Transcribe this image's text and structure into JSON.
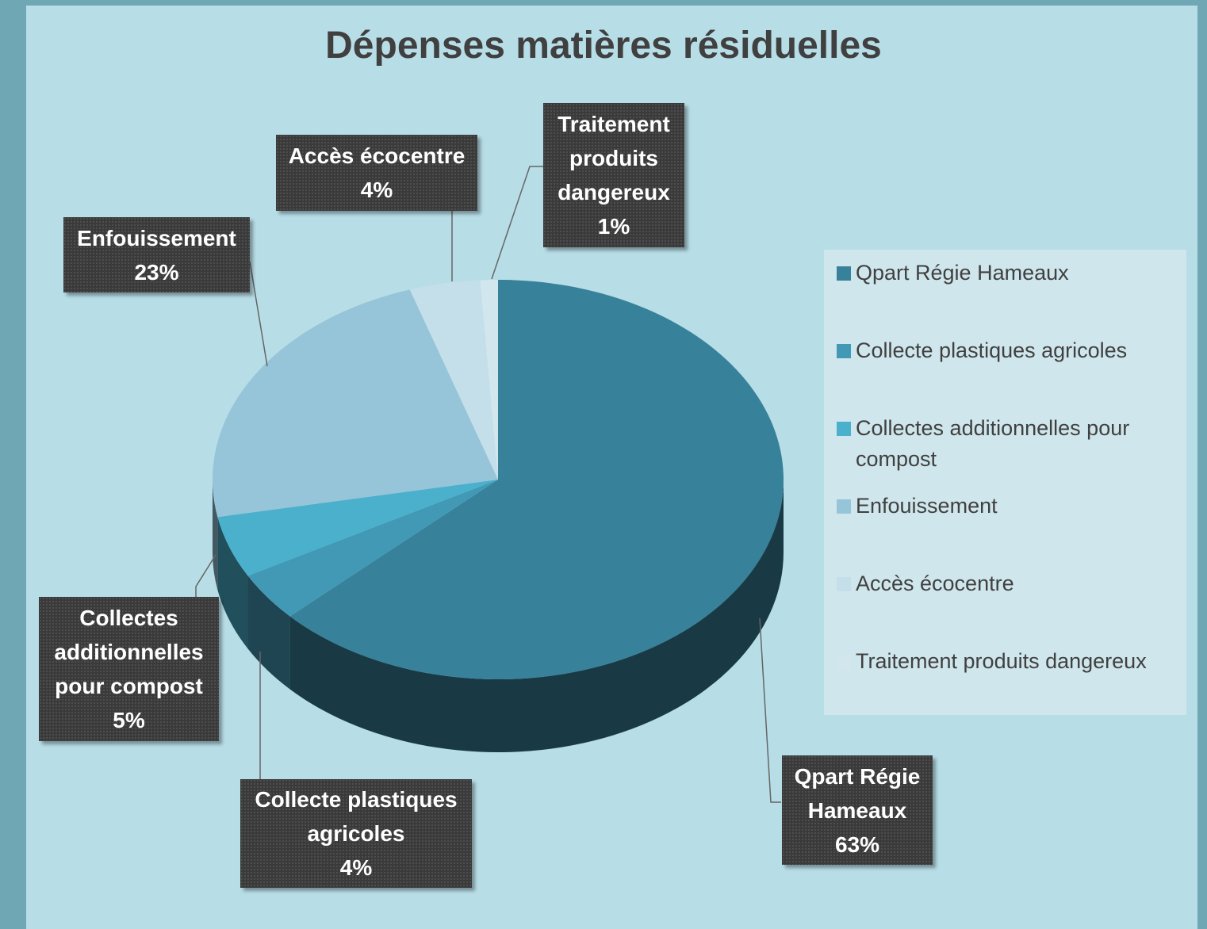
{
  "chart_data": {
    "type": "pie3d",
    "title": "Dépenses matières résiduelles",
    "categories": [
      "Qpart Régie Hameaux",
      "Collecte plastiques agricoles",
      "Collectes additionnelles pour compost",
      "Enfouissement",
      "Accès écocentre",
      "Traitement produits dangereux"
    ],
    "values": [
      63,
      4,
      5,
      23,
      4,
      1
    ],
    "value_labels": [
      "63%",
      "4%",
      "5%",
      "23%",
      "4%",
      "1%"
    ],
    "colors": [
      "#37819a",
      "#4299b5",
      "#4ab0cc",
      "#96c4d8",
      "#c4dfea",
      "#d2e6ee"
    ],
    "legend": "right"
  }
}
